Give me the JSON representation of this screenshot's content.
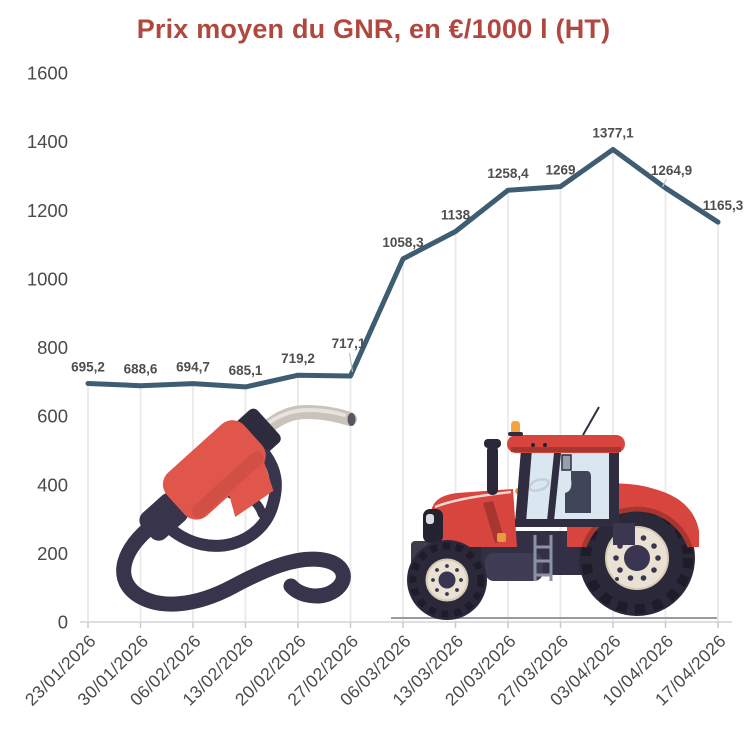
{
  "chart_data": {
    "type": "line",
    "title": "Prix moyen du GNR, en €/1000 l (HT)",
    "categories": [
      "23/01/2026",
      "30/01/2026",
      "06/02/2026",
      "13/02/2026",
      "20/02/2026",
      "27/02/2026",
      "06/03/2026",
      "13/03/2026",
      "20/03/2026",
      "27/03/2026",
      "03/04/2026",
      "10/04/2026",
      "17/04/2026"
    ],
    "values": [
      695.2,
      688.6,
      694.7,
      685.1,
      719.2,
      717.1,
      1058.3,
      1138,
      1258.4,
      1269,
      1377.1,
      1264.9,
      1165.3
    ],
    "point_labels": [
      "695,2",
      "688,6",
      "694,7",
      "685,1",
      "719,2",
      "717,1",
      "1058,3",
      "1138",
      "1258,4",
      "1269",
      "1377,1",
      "1264,9",
      "1165,3"
    ],
    "xlabel": "",
    "ylabel": "",
    "ylim": [
      0,
      1600
    ],
    "yticks": [
      0,
      200,
      400,
      600,
      800,
      1000,
      1200,
      1400,
      1600
    ],
    "grid": "vertical droplines from each point to baseline",
    "legend": "none",
    "leader_label_indices": [
      5,
      11
    ],
    "line_color": "#3F5D72",
    "title_color": "#B0483F",
    "label_color": "#4E4E4E",
    "dropline_color": "#EBEBEB",
    "illustrations": [
      "fuel-pump-nozzle",
      "red-tractor"
    ]
  }
}
